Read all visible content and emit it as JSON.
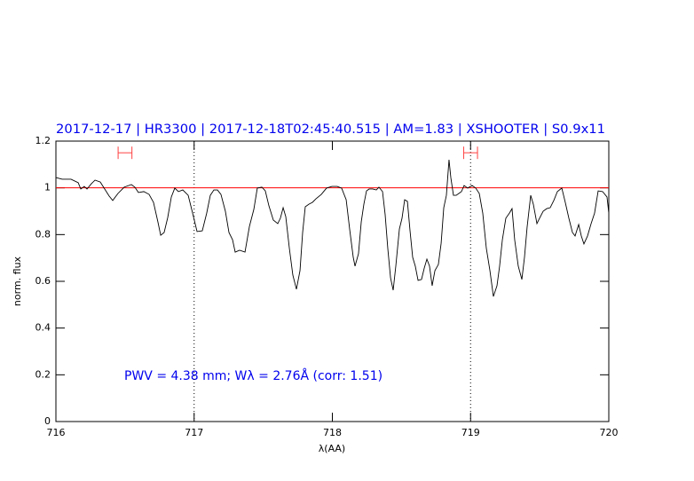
{
  "chart_data": {
    "type": "line",
    "title": "2017-12-17 | HR3300 | 2017-12-18T02:45:40.515 | AM=1.83 | XSHOOTER | S0.9x11",
    "xlabel": "λ(AA)",
    "ylabel": "norm. flux",
    "annotation": "PWV = 4.38 mm; Wλ = 2.76Å (corr: 1.51)",
    "xlim": [
      716,
      720
    ],
    "ylim": [
      0,
      1.2
    ],
    "xticks": [
      716,
      717,
      718,
      719,
      720
    ],
    "yticks": [
      0,
      0.2,
      0.4,
      0.6,
      0.8,
      1,
      1.2
    ],
    "reference_line": {
      "y": 1,
      "color": "#ff0000"
    },
    "dotted_lines": [
      717,
      719
    ],
    "intervals": [
      {
        "x": [
          716.45,
          716.55
        ],
        "y": 1.15
      },
      {
        "x": [
          718.95,
          719.05
        ],
        "y": 1.15
      }
    ],
    "interval_color": "#ff4040",
    "series": [
      {
        "color": "#000000",
        "x": [
          716.0,
          716.045,
          716.109,
          716.161,
          716.18,
          716.205,
          716.225,
          716.257,
          716.283,
          716.321,
          716.353,
          716.385,
          716.411,
          716.449,
          716.494,
          716.546,
          716.571,
          716.597,
          716.636,
          716.674,
          716.706,
          716.738,
          716.758,
          716.783,
          716.809,
          716.835,
          716.86,
          716.886,
          716.918,
          716.957,
          716.989,
          717.021,
          717.059,
          717.091,
          717.117,
          717.143,
          717.169,
          717.194,
          717.226,
          717.252,
          717.278,
          717.297,
          717.329,
          717.368,
          717.4,
          717.432,
          717.457,
          717.49,
          717.515,
          717.541,
          717.573,
          717.605,
          717.624,
          717.644,
          717.663,
          717.689,
          717.714,
          717.74,
          717.766,
          717.785,
          717.804,
          717.83,
          717.856,
          717.881,
          717.92,
          717.958,
          717.997,
          718.035,
          718.067,
          718.1,
          718.125,
          718.151,
          718.164,
          718.189,
          718.209,
          718.228,
          718.247,
          718.266,
          718.292,
          718.318,
          718.337,
          718.363,
          718.382,
          718.401,
          718.421,
          718.44,
          718.459,
          718.485,
          718.504,
          718.523,
          718.543,
          718.562,
          718.581,
          718.6,
          718.62,
          718.645,
          718.665,
          718.684,
          718.703,
          718.722,
          718.742,
          718.767,
          718.787,
          718.806,
          718.825,
          718.844,
          718.857,
          718.876,
          718.896,
          718.915,
          718.934,
          718.953,
          718.979,
          719.011,
          719.037,
          719.063,
          719.088,
          719.114,
          719.14,
          719.165,
          719.191,
          719.21,
          719.23,
          719.255,
          719.281,
          719.3,
          719.319,
          719.345,
          719.371,
          719.39,
          719.409,
          719.435,
          719.454,
          719.48,
          719.499,
          719.525,
          719.551,
          719.576,
          719.602,
          719.628,
          719.66,
          719.685,
          719.711,
          719.737,
          719.756,
          719.782,
          719.801,
          719.82,
          719.846,
          719.872,
          719.897,
          719.923,
          719.955,
          719.987,
          720.0
        ],
        "values": [
          1.044,
          1.037,
          1.037,
          1.022,
          0.995,
          1.006,
          0.995,
          1.018,
          1.033,
          1.025,
          0.995,
          0.965,
          0.946,
          0.976,
          1.003,
          1.014,
          1.003,
          0.98,
          0.984,
          0.972,
          0.938,
          0.854,
          0.797,
          0.809,
          0.873,
          0.961,
          0.999,
          0.984,
          0.991,
          0.968,
          0.892,
          0.813,
          0.816,
          0.892,
          0.968,
          0.991,
          0.991,
          0.972,
          0.9,
          0.809,
          0.778,
          0.725,
          0.733,
          0.725,
          0.835,
          0.908,
          0.999,
          1.003,
          0.987,
          0.923,
          0.862,
          0.847,
          0.87,
          0.915,
          0.877,
          0.741,
          0.627,
          0.566,
          0.646,
          0.809,
          0.919,
          0.93,
          0.938,
          0.953,
          0.972,
          0.999,
          1.006,
          1.006,
          0.999,
          0.949,
          0.824,
          0.703,
          0.665,
          0.718,
          0.854,
          0.93,
          0.987,
          0.995,
          0.995,
          0.991,
          1.003,
          0.984,
          0.885,
          0.741,
          0.615,
          0.562,
          0.665,
          0.824,
          0.87,
          0.949,
          0.942,
          0.816,
          0.703,
          0.665,
          0.604,
          0.608,
          0.657,
          0.695,
          0.665,
          0.581,
          0.646,
          0.672,
          0.763,
          0.915,
          0.968,
          1.12,
          1.044,
          0.968,
          0.968,
          0.976,
          0.984,
          1.01,
          0.999,
          1.01,
          0.999,
          0.976,
          0.892,
          0.741,
          0.646,
          0.535,
          0.581,
          0.665,
          0.778,
          0.87,
          0.892,
          0.911,
          0.778,
          0.665,
          0.608,
          0.703,
          0.832,
          0.968,
          0.93,
          0.847,
          0.87,
          0.9,
          0.911,
          0.915,
          0.946,
          0.984,
          0.999,
          0.938,
          0.87,
          0.809,
          0.794,
          0.843,
          0.794,
          0.76,
          0.794,
          0.847,
          0.892,
          0.987,
          0.984,
          0.961,
          0.892
        ]
      }
    ]
  }
}
